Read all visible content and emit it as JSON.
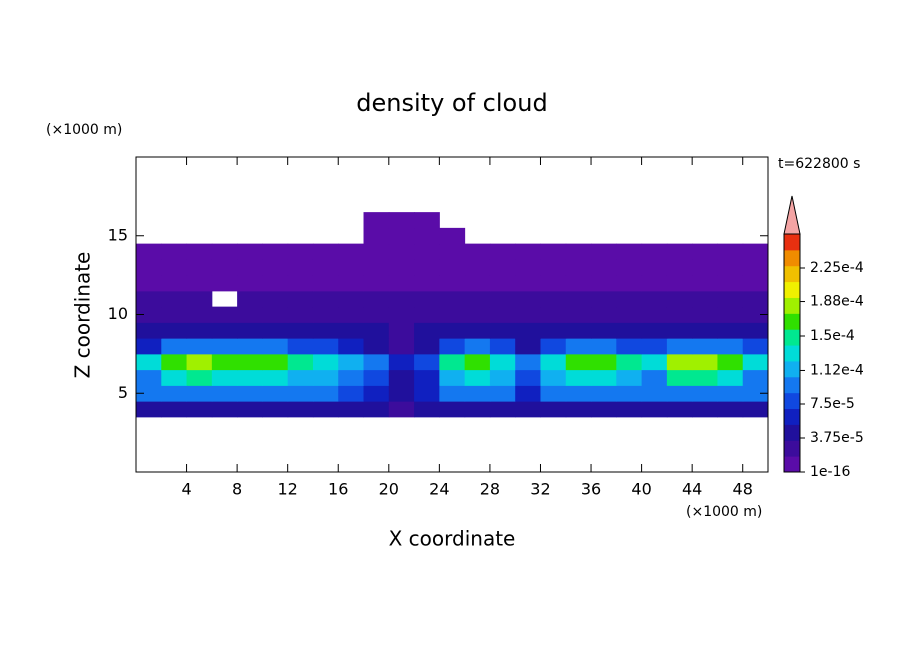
{
  "chart_data": {
    "type": "contour",
    "title": "density of cloud",
    "xlabel": "X coordinate",
    "ylabel": "Z coordinate",
    "xunit": "(×1000 m)",
    "yunit": "(×1000 m)",
    "time_label": "t=622800 s",
    "xlim": [
      0,
      50
    ],
    "ylim": [
      0,
      20
    ],
    "xticks": [
      4,
      8,
      12,
      16,
      20,
      24,
      28,
      32,
      36,
      40,
      44,
      48
    ],
    "yticks": [
      5,
      10,
      15
    ],
    "x": [
      1,
      3,
      5,
      7,
      9,
      11,
      13,
      15,
      17,
      19,
      21,
      23,
      25,
      27,
      29,
      31,
      33,
      35,
      37,
      39,
      41,
      43,
      45,
      47,
      49
    ],
    "y": [
      4,
      5,
      6,
      7,
      8,
      9,
      10,
      11,
      12,
      13,
      14,
      15,
      16
    ],
    "z": [
      [
        5e-05,
        5e-05,
        5e-05,
        5e-05,
        5e-05,
        5e-05,
        5e-05,
        5e-05,
        5e-05,
        4e-05,
        3e-05,
        4e-05,
        5e-05,
        5e-05,
        5e-05,
        5e-05,
        5e-05,
        5e-05,
        5e-05,
        5e-05,
        5e-05,
        5e-05,
        5e-05,
        5e-05,
        5e-05
      ],
      [
        9e-05,
        9e-05,
        9e-05,
        9e-05,
        9e-05,
        9e-05,
        9e-05,
        9e-05,
        8e-05,
        6e-05,
        4e-05,
        6e-05,
        9e-05,
        9e-05,
        9e-05,
        7e-05,
        9e-05,
        9e-05,
        9e-05,
        9e-05,
        9e-05,
        9e-05,
        9e-05,
        9e-05,
        9e-05
      ],
      [
        0.000105,
        0.000128,
        0.000144,
        0.000136,
        0.000136,
        0.000128,
        0.00012,
        0.000112,
        9.6e-05,
        7.2e-05,
        4.8e-05,
        6.4e-05,
        0.00012,
        0.000128,
        0.000112,
        7.2e-05,
        0.000112,
        0.000128,
        0.000128,
        0.00012,
        0.000104,
        0.000144,
        0.000152,
        0.000128,
        0.000104
      ],
      [
        0.00013,
        0.00016,
        0.00018,
        0.00017,
        0.00017,
        0.00016,
        0.00015,
        0.00014,
        0.00012,
        9e-05,
        6e-05,
        8e-05,
        0.00015,
        0.00016,
        0.00014,
        9e-05,
        0.00014,
        0.00016,
        0.00016,
        0.00015,
        0.00013,
        0.00018,
        0.00019,
        0.00016,
        0.00013
      ],
      [
        7e-05,
        8.8e-05,
        9.9e-05,
        9.4e-05,
        9.4e-05,
        8.8e-05,
        8.3e-05,
        7.7e-05,
        6.6e-05,
        4e-05,
        3e-05,
        4e-05,
        8.3e-05,
        8.8e-05,
        7.7e-05,
        5e-05,
        7.7e-05,
        8.8e-05,
        8.8e-05,
        8.3e-05,
        7.2e-05,
        9.9e-05,
        0.000105,
        8.8e-05,
        7.2e-05
      ],
      [
        5e-05,
        5e-05,
        5e-05,
        5e-05,
        5e-05,
        5e-05,
        5e-05,
        5e-05,
        5e-05,
        4e-05,
        3e-05,
        4e-05,
        5e-05,
        5e-05,
        5e-05,
        5e-05,
        5e-05,
        5e-05,
        5e-05,
        5e-05,
        5e-05,
        5e-05,
        5e-05,
        5e-05,
        5e-05
      ],
      [
        3e-05,
        3e-05,
        3e-05,
        3e-05,
        3e-05,
        3e-05,
        3e-05,
        3e-05,
        3e-05,
        3e-05,
        3e-05,
        3e-05,
        3e-05,
        3e-05,
        3e-05,
        3e-05,
        3e-05,
        3e-05,
        3e-05,
        3e-05,
        3e-05,
        3e-05,
        3e-05,
        3e-05,
        3e-05
      ],
      [
        2e-05,
        2e-05,
        2e-05,
        null,
        2e-05,
        2e-05,
        2e-05,
        2e-05,
        2e-05,
        2e-05,
        2e-05,
        2e-05,
        2e-05,
        2e-05,
        2e-05,
        2e-05,
        2e-05,
        2e-05,
        2e-05,
        2e-05,
        2e-05,
        2e-05,
        2e-05,
        2e-05,
        2e-05
      ],
      [
        1.2e-05,
        1.2e-05,
        1.2e-05,
        1.2e-05,
        1.2e-05,
        1.2e-05,
        1.2e-05,
        1.2e-05,
        1.2e-05,
        1.2e-05,
        1.2e-05,
        1.2e-05,
        1.2e-05,
        1.2e-05,
        1.2e-05,
        1.2e-05,
        1.2e-05,
        1.2e-05,
        1.2e-05,
        1.2e-05,
        1.2e-05,
        1.2e-05,
        1.2e-05,
        1.2e-05,
        1.2e-05
      ],
      [
        8e-06,
        8e-06,
        8e-06,
        8e-06,
        8e-06,
        8e-06,
        8e-06,
        8e-06,
        8e-06,
        8e-06,
        8e-06,
        8e-06,
        8e-06,
        8e-06,
        8e-06,
        8e-06,
        8e-06,
        8e-06,
        8e-06,
        8e-06,
        8e-06,
        8e-06,
        8e-06,
        8e-06,
        8e-06
      ],
      [
        4e-06,
        4e-06,
        4e-06,
        4e-06,
        4e-06,
        4e-06,
        4e-06,
        4e-06,
        4e-06,
        4e-06,
        4e-06,
        4e-06,
        4e-06,
        4e-06,
        4e-06,
        4e-06,
        4e-06,
        4e-06,
        4e-06,
        4e-06,
        4e-06,
        4e-06,
        4e-06,
        4e-06,
        4e-06
      ],
      [
        null,
        null,
        null,
        null,
        null,
        null,
        null,
        null,
        null,
        5e-06,
        5e-06,
        5e-06,
        5e-06,
        null,
        null,
        null,
        null,
        null,
        null,
        null,
        null,
        null,
        null,
        null,
        null
      ],
      [
        null,
        null,
        null,
        null,
        null,
        null,
        null,
        null,
        null,
        3e-06,
        3e-06,
        3e-06,
        null,
        null,
        null,
        null,
        null,
        null,
        null,
        null,
        null,
        null,
        null,
        null,
        null
      ]
    ],
    "clim": [
      1e-16,
      0.0002625
    ],
    "colors": [
      "#5a0ca8",
      "#3c0c9c",
      "#20109c",
      "#1020c0",
      "#1048e0",
      "#1478f0",
      "#10b0f0",
      "#00dcd8",
      "#00e890",
      "#30e000",
      "#a0f000",
      "#f0f000",
      "#f0c000",
      "#f08c00",
      "#e83010"
    ],
    "over_color": "#f4a4a4",
    "colorbar_ticks": [
      {
        "value": 1e-16,
        "label": "1e-16"
      },
      {
        "value": 3.75e-05,
        "label": "3.75e-5"
      },
      {
        "value": 7.5e-05,
        "label": "7.5e-5"
      },
      {
        "value": 0.000112,
        "label": "1.12e-4"
      },
      {
        "value": 0.00015,
        "label": "1.5e-4"
      },
      {
        "value": 0.000188,
        "label": "1.88e-4"
      },
      {
        "value": 0.000225,
        "label": "2.25e-4"
      }
    ]
  }
}
